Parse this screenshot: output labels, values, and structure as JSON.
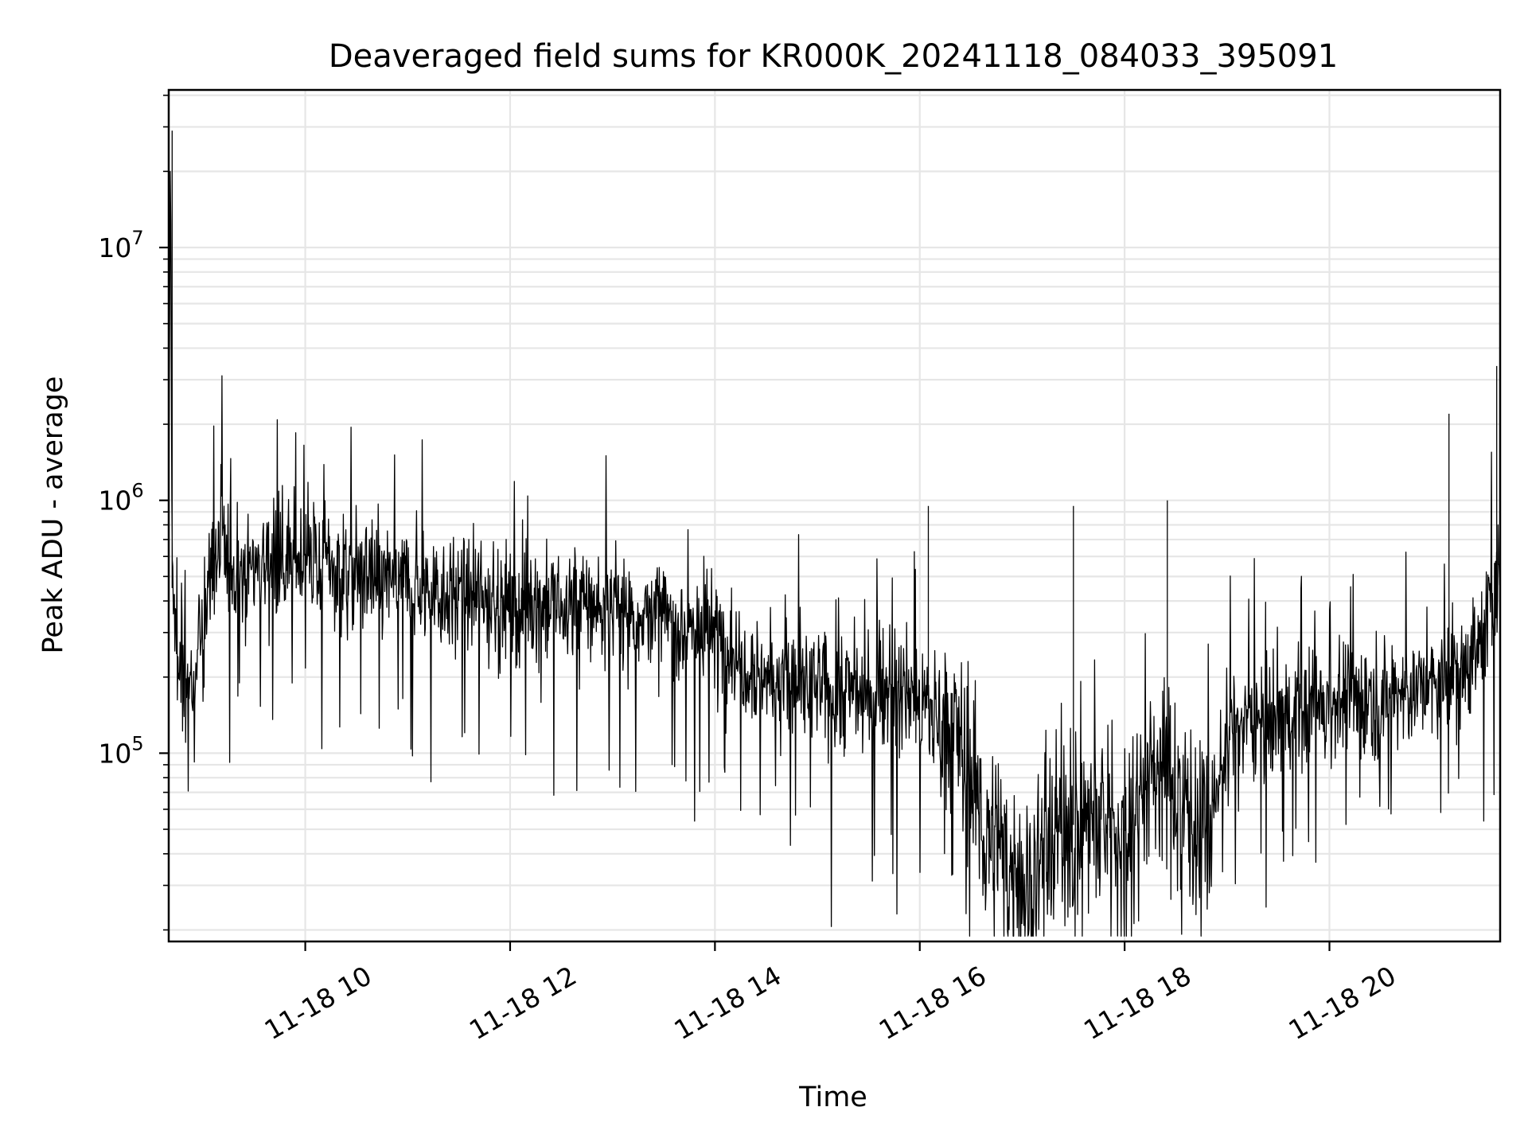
{
  "chart_data": {
    "type": "line",
    "title": "Deaveraged field sums for KR000K_20241118_084033_395091",
    "xlabel": "Time",
    "ylabel": "Peak ADU - average",
    "yscale": "log",
    "xlim": [
      "11-18 08:40",
      "11-18 21:40"
    ],
    "ylim": [
      18000,
      42000000
    ],
    "grid": "on",
    "x_tick_labels": [
      "11-18 10",
      "11-18 12",
      "11-18 14",
      "11-18 16",
      "11-18 18",
      "11-18 20"
    ],
    "y_tick_labels": [
      {
        "base": "10",
        "exp": "5"
      },
      {
        "base": "10",
        "exp": "6"
      },
      {
        "base": "10",
        "exp": "7"
      }
    ],
    "line_color": "#000000",
    "series": [
      {
        "x": [
          "08:40",
          "08:41",
          "08:42",
          "08:44",
          "08:47",
          "08:50",
          "08:55",
          "09:00",
          "09:05",
          "09:10",
          "09:20",
          "09:30",
          "09:40",
          "09:50",
          "10:00",
          "10:10",
          "10:20",
          "10:30",
          "10:40",
          "10:50",
          "11:00",
          "11:10",
          "11:20",
          "11:30",
          "11:40",
          "11:50",
          "12:00",
          "12:10",
          "12:20",
          "12:30",
          "12:40",
          "12:50",
          "13:00",
          "13:10",
          "13:20",
          "13:30",
          "13:40",
          "13:50",
          "14:00",
          "14:10",
          "14:20",
          "14:30",
          "14:40",
          "14:50",
          "15:00",
          "15:10",
          "15:20",
          "15:30",
          "15:40",
          "15:50",
          "16:00",
          "16:10",
          "16:20",
          "16:30",
          "16:40",
          "16:50",
          "17:00",
          "17:05",
          "17:10",
          "17:20",
          "17:30",
          "17:40",
          "17:50",
          "18:00",
          "18:10",
          "18:20",
          "18:30",
          "18:40",
          "18:50",
          "19:00",
          "19:10",
          "19:20",
          "19:30",
          "19:40",
          "19:50",
          "20:00",
          "20:10",
          "20:20",
          "20:30",
          "20:40",
          "20:50",
          "21:00",
          "21:10",
          "21:20",
          "21:30",
          "21:35",
          "21:40"
        ],
        "y": [
          700000,
          29000000,
          450000,
          300000,
          180000,
          200000,
          160000,
          300000,
          550000,
          600000,
          520000,
          560000,
          600000,
          580000,
          590000,
          560000,
          540000,
          520000,
          500000,
          480000,
          470000,
          450000,
          440000,
          430000,
          410000,
          400000,
          390000,
          380000,
          380000,
          370000,
          400000,
          380000,
          370000,
          360000,
          350000,
          340000,
          320000,
          310000,
          300000,
          260000,
          230000,
          200000,
          190000,
          180000,
          180000,
          170000,
          180000,
          170000,
          180000,
          170000,
          160000,
          140000,
          130000,
          80000,
          45000,
          35000,
          32000,
          30000,
          40000,
          50000,
          52000,
          55000,
          50000,
          55000,
          70000,
          90000,
          70000,
          60000,
          50000,
          120000,
          130000,
          140000,
          140000,
          150000,
          155000,
          160000,
          160000,
          165000,
          170000,
          175000,
          180000,
          180000,
          190000,
          230000,
          280000,
          420000,
          480000
        ]
      }
    ]
  }
}
